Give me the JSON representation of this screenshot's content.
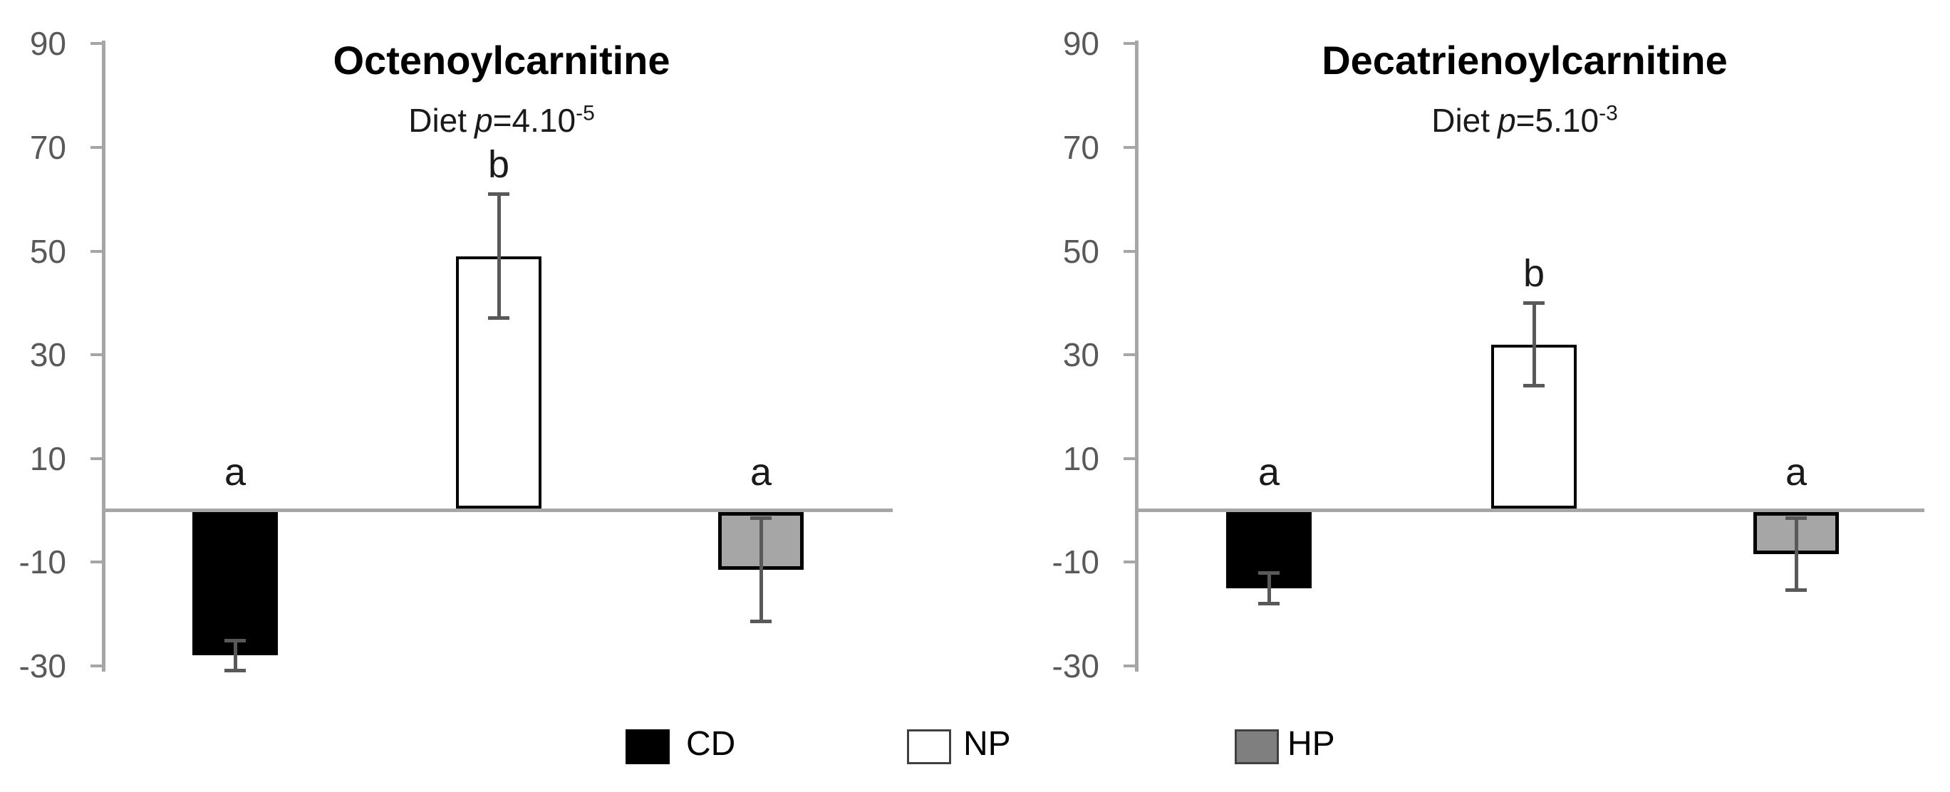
{
  "figure": {
    "background": "#ffffff"
  },
  "colors": {
    "axis_line": "#a6a6a6",
    "zero_line": "#a6a6a6",
    "tick_label": "#595959",
    "error_bar": "#595959",
    "title_text": "#000000",
    "sig_label_text": "#1a1a1a",
    "legend_text": "#000000"
  },
  "legend": {
    "items": [
      {
        "label": "CD",
        "swatch_fill": "#000000",
        "swatch_border": "#000000"
      },
      {
        "label": "NP",
        "swatch_fill": "#ffffff",
        "swatch_border": "#404040"
      },
      {
        "label": "HP",
        "swatch_fill": "#7f7f7f",
        "swatch_border": "#404040"
      }
    ]
  },
  "chart_data": [
    {
      "type": "bar",
      "title": "Octenoylcarnitine",
      "subtitle": {
        "before_p": "Diet",
        "p": "p",
        "after_p": "=4.10",
        "exponent": "-5"
      },
      "categories": [
        "CD",
        "NP",
        "HP"
      ],
      "values": [
        -28,
        49,
        -11.5
      ],
      "errors": [
        3,
        12,
        10
      ],
      "sig_labels": [
        "a",
        "b",
        "a"
      ],
      "bar_fills": [
        "#000000",
        "#ffffff",
        "#a6a6a6"
      ],
      "bar_border_color": "#000000",
      "yticks": [
        90,
        70,
        50,
        30,
        10,
        -10,
        -30
      ],
      "ylim": [
        -30,
        90
      ],
      "grid": false,
      "legend_position": "bottom"
    },
    {
      "type": "bar",
      "title": "Decatrienoylcarnitine",
      "subtitle": {
        "before_p": "Diet",
        "p": "p",
        "after_p": "=5.10",
        "exponent": "-3"
      },
      "categories": [
        "CD",
        "NP",
        "HP"
      ],
      "values": [
        -15,
        32,
        -8.5
      ],
      "errors": [
        3,
        8,
        7
      ],
      "sig_labels": [
        "a",
        "b",
        "a"
      ],
      "bar_fills": [
        "#000000",
        "#ffffff",
        "#a6a6a6"
      ],
      "bar_border_color": "#000000",
      "yticks": [
        90,
        70,
        50,
        30,
        10,
        -10,
        -30
      ],
      "ylim": [
        -30,
        90
      ],
      "grid": false,
      "legend_position": "bottom"
    }
  ]
}
